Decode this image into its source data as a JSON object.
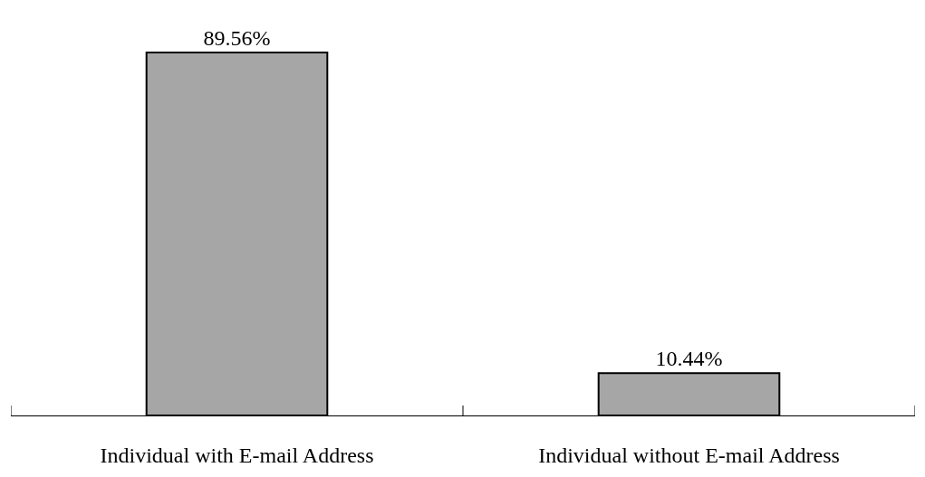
{
  "chart_data": {
    "type": "bar",
    "categories": [
      "Individual with E-mail Address",
      "Individual without E-mail Address"
    ],
    "values": [
      89.56,
      10.44
    ],
    "value_labels": [
      "89.56%",
      "10.44%"
    ],
    "color": "#a6a6a6"
  }
}
